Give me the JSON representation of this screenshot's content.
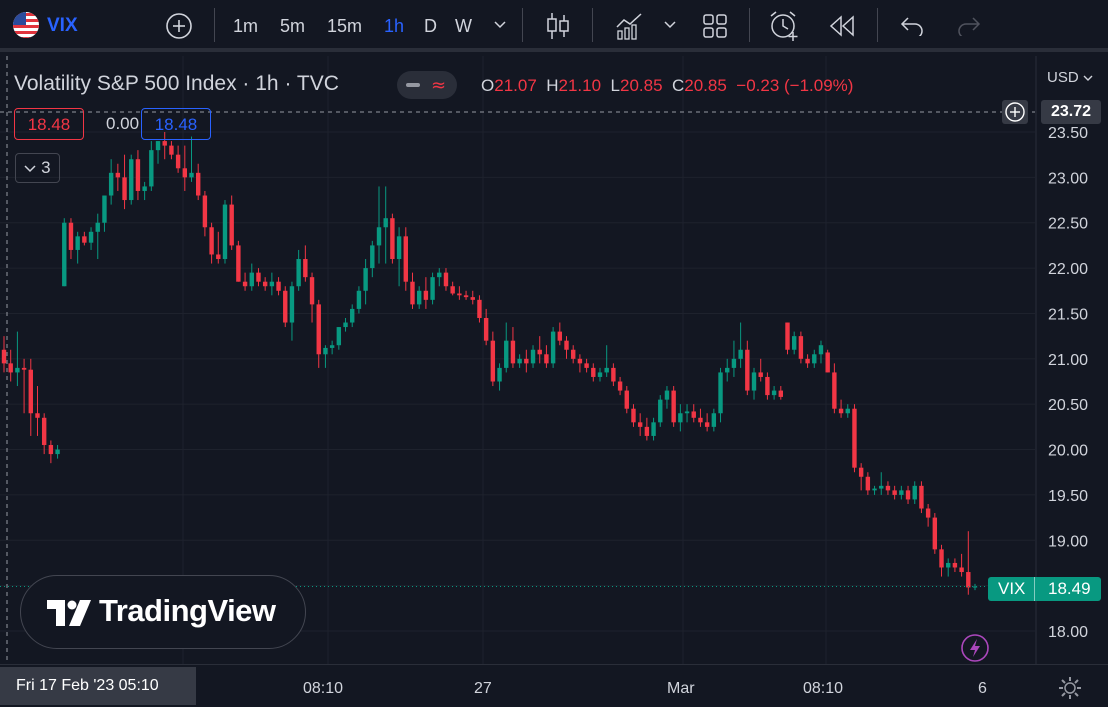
{
  "toolbar": {
    "symbol": "VIX",
    "intervals": [
      "1m",
      "5m",
      "15m",
      "1h",
      "D",
      "W"
    ],
    "active_interval": "1h",
    "icons": [
      "us-flag-icon",
      "add-symbol-icon",
      "chevron-down-icon",
      "candles-icon",
      "indicators-icon",
      "chevron-down-icon",
      "layout-icon",
      "alert-icon",
      "replay-icon",
      "undo-icon",
      "redo-icon"
    ]
  },
  "legend": {
    "title": "Volatility S&P 500 Index · 1h · TVC",
    "ohlc": {
      "o_label": "O",
      "o": "21.07",
      "h_label": "H",
      "h": "21.10",
      "l_label": "L",
      "l": "20.85",
      "c_label": "C",
      "c": "20.85",
      "change": "−0.23 (−1.09%)"
    },
    "bid": "18.48",
    "spread": "0.00",
    "ask": "18.48",
    "indicators_count": "3"
  },
  "price_axis": {
    "currency": "USD",
    "crosshair_price": "23.72",
    "last_symbol": "VIX",
    "last_price": "18.49"
  },
  "time_axis": {
    "crosshair_time": "Fri 17 Feb '23   05:10",
    "ticks": [
      "08:10",
      "27",
      "Mar",
      "08:10",
      "6"
    ]
  },
  "branding": {
    "logo_text": "TradingView"
  },
  "colors": {
    "up": "#089981",
    "down": "#f23645",
    "background": "#131722",
    "grid": "#1e222d",
    "accent": "#2962ff"
  },
  "chart_data": {
    "type": "candlestick",
    "title": "Volatility S&P 500 Index · 1h · TVC",
    "xlabel": "",
    "ylabel": "",
    "ylim": [
      17.6,
      23.8
    ],
    "y_ticks": [
      "18.00",
      "18.50",
      "19.00",
      "19.50",
      "20.00",
      "20.50",
      "21.00",
      "21.50",
      "22.00",
      "22.50",
      "23.00",
      "23.50"
    ],
    "x_tick_labels": [
      "08:10",
      "27",
      "Mar",
      "08:10",
      "6"
    ],
    "grid": true,
    "series": [
      {
        "values": [
          [
            21.1,
            21.25,
            20.85,
            20.95
          ],
          [
            20.95,
            21.1,
            20.75,
            20.85
          ],
          [
            20.85,
            21.3,
            20.7,
            20.9
          ],
          [
            20.9,
            21.0,
            20.4,
            20.88
          ],
          [
            20.88,
            21.0,
            20.15,
            20.4
          ],
          [
            20.4,
            20.7,
            20.15,
            20.35
          ],
          [
            20.35,
            20.4,
            19.95,
            20.05
          ],
          [
            20.05,
            20.1,
            19.85,
            19.95
          ],
          [
            19.95,
            20.05,
            19.9,
            20.0
          ],
          [
            21.8,
            22.55,
            21.8,
            22.5
          ],
          [
            22.5,
            22.55,
            22.1,
            22.2
          ],
          [
            22.2,
            22.4,
            22.05,
            22.35
          ],
          [
            22.35,
            22.4,
            22.25,
            22.28
          ],
          [
            22.28,
            22.45,
            22.2,
            22.4
          ],
          [
            22.4,
            22.6,
            22.1,
            22.5
          ],
          [
            22.5,
            22.8,
            22.4,
            22.8
          ],
          [
            22.8,
            23.2,
            22.7,
            23.05
          ],
          [
            23.05,
            23.15,
            22.85,
            23.0
          ],
          [
            23.0,
            23.25,
            22.65,
            22.75
          ],
          [
            22.75,
            23.25,
            22.7,
            23.2
          ],
          [
            23.2,
            23.3,
            22.75,
            22.85
          ],
          [
            22.85,
            22.95,
            22.75,
            22.9
          ],
          [
            22.9,
            23.4,
            22.85,
            23.3
          ],
          [
            23.3,
            23.4,
            23.15,
            23.4
          ],
          [
            23.4,
            23.5,
            23.2,
            23.35
          ],
          [
            23.35,
            23.4,
            23.2,
            23.25
          ],
          [
            23.25,
            23.35,
            23.05,
            23.1
          ],
          [
            23.1,
            23.35,
            22.85,
            23.0
          ],
          [
            23.0,
            23.45,
            22.95,
            23.05
          ],
          [
            23.05,
            23.15,
            22.75,
            22.8
          ],
          [
            22.8,
            22.85,
            22.35,
            22.45
          ],
          [
            22.45,
            22.5,
            22.05,
            22.15
          ],
          [
            22.15,
            22.4,
            22.05,
            22.1
          ],
          [
            22.1,
            22.75,
            22.05,
            22.7
          ],
          [
            22.7,
            22.8,
            22.2,
            22.25
          ],
          [
            22.25,
            22.3,
            21.85,
            21.85
          ],
          [
            21.85,
            21.95,
            21.75,
            21.8
          ],
          [
            21.8,
            22.05,
            21.75,
            21.95
          ],
          [
            21.95,
            22.0,
            21.8,
            21.85
          ],
          [
            21.85,
            21.9,
            21.75,
            21.8
          ],
          [
            21.8,
            21.95,
            21.7,
            21.85
          ],
          [
            21.85,
            21.9,
            21.7,
            21.75
          ],
          [
            21.75,
            21.8,
            21.35,
            21.4
          ],
          [
            21.4,
            21.85,
            21.2,
            21.8
          ],
          [
            21.8,
            22.2,
            21.75,
            22.1
          ],
          [
            22.1,
            22.25,
            21.85,
            21.9
          ],
          [
            21.9,
            21.95,
            21.4,
            21.6
          ],
          [
            21.6,
            21.65,
            20.9,
            21.05
          ],
          [
            21.05,
            21.15,
            20.9,
            21.12
          ],
          [
            21.12,
            21.2,
            21.05,
            21.15
          ],
          [
            21.15,
            21.35,
            21.1,
            21.35
          ],
          [
            21.35,
            21.45,
            21.3,
            21.4
          ],
          [
            21.4,
            21.6,
            21.35,
            21.55
          ],
          [
            21.55,
            21.8,
            21.5,
            21.75
          ],
          [
            21.75,
            22.1,
            21.6,
            22.0
          ],
          [
            22.0,
            22.3,
            21.9,
            22.25
          ],
          [
            22.25,
            22.9,
            22.05,
            22.45
          ],
          [
            22.45,
            22.9,
            22.05,
            22.55
          ],
          [
            22.55,
            22.6,
            22.05,
            22.1
          ],
          [
            22.1,
            22.45,
            21.8,
            22.35
          ],
          [
            22.35,
            22.45,
            21.75,
            21.85
          ],
          [
            21.85,
            21.95,
            21.55,
            21.6
          ],
          [
            21.6,
            21.8,
            21.55,
            21.75
          ],
          [
            21.75,
            21.9,
            21.55,
            21.65
          ],
          [
            21.65,
            21.95,
            21.6,
            21.9
          ],
          [
            21.9,
            22.0,
            21.8,
            21.95
          ],
          [
            21.95,
            22.0,
            21.75,
            21.8
          ],
          [
            21.8,
            21.85,
            21.7,
            21.72
          ],
          [
            21.72,
            21.8,
            21.65,
            21.7
          ],
          [
            21.7,
            21.75,
            21.65,
            21.68
          ],
          [
            21.68,
            21.75,
            21.6,
            21.65
          ],
          [
            21.65,
            21.7,
            21.4,
            21.45
          ],
          [
            21.45,
            21.55,
            21.15,
            21.2
          ],
          [
            21.2,
            21.3,
            20.7,
            20.75
          ],
          [
            20.75,
            20.95,
            20.65,
            20.9
          ],
          [
            20.9,
            21.4,
            20.85,
            21.2
          ],
          [
            21.2,
            21.35,
            20.9,
            20.95
          ],
          [
            20.95,
            21.05,
            20.9,
            21.0
          ],
          [
            21.0,
            21.1,
            20.85,
            20.95
          ],
          [
            20.95,
            21.15,
            20.9,
            21.1
          ],
          [
            21.1,
            21.25,
            20.95,
            21.05
          ],
          [
            21.05,
            21.15,
            20.9,
            20.95
          ],
          [
            20.95,
            21.35,
            20.9,
            21.3
          ],
          [
            21.3,
            21.4,
            21.15,
            21.2
          ],
          [
            21.2,
            21.25,
            21.0,
            21.1
          ],
          [
            21.1,
            21.15,
            20.95,
            21.0
          ],
          [
            21.0,
            21.05,
            20.85,
            20.95
          ],
          [
            20.95,
            21.0,
            20.85,
            20.9
          ],
          [
            20.9,
            20.95,
            20.75,
            20.8
          ],
          [
            20.8,
            20.9,
            20.75,
            20.85
          ],
          [
            20.85,
            21.15,
            20.8,
            20.9
          ],
          [
            20.9,
            20.95,
            20.7,
            20.75
          ],
          [
            20.75,
            20.8,
            20.6,
            20.65
          ],
          [
            20.65,
            20.7,
            20.4,
            20.45
          ],
          [
            20.45,
            20.5,
            20.25,
            20.3
          ],
          [
            20.3,
            20.4,
            20.15,
            20.25
          ],
          [
            20.25,
            20.35,
            20.1,
            20.15
          ],
          [
            20.15,
            20.35,
            20.1,
            20.3
          ],
          [
            20.3,
            20.6,
            20.25,
            20.55
          ],
          [
            20.55,
            20.7,
            20.45,
            20.65
          ],
          [
            20.65,
            20.7,
            20.25,
            20.3
          ],
          [
            20.3,
            20.5,
            20.2,
            20.4
          ],
          [
            20.4,
            20.5,
            20.3,
            20.42
          ],
          [
            20.42,
            20.5,
            20.3,
            20.35
          ],
          [
            20.35,
            20.45,
            20.25,
            20.3
          ],
          [
            20.3,
            20.4,
            20.2,
            20.25
          ],
          [
            20.25,
            20.45,
            20.2,
            20.4
          ],
          [
            20.4,
            20.9,
            20.3,
            20.85
          ],
          [
            20.85,
            21.0,
            20.75,
            20.9
          ],
          [
            20.9,
            21.2,
            20.8,
            21.0
          ],
          [
            21.0,
            21.4,
            20.9,
            21.1
          ],
          [
            21.1,
            21.2,
            20.6,
            20.65
          ],
          [
            20.65,
            20.9,
            20.55,
            20.85
          ],
          [
            20.85,
            21.0,
            20.75,
            20.8
          ],
          [
            20.8,
            20.85,
            20.55,
            20.6
          ],
          [
            20.6,
            20.7,
            20.55,
            20.65
          ],
          [
            20.65,
            20.7,
            20.55,
            20.58
          ],
          [
            21.4,
            21.4,
            21.05,
            21.1
          ],
          [
            21.1,
            21.3,
            21.05,
            21.25
          ],
          [
            21.25,
            21.3,
            20.95,
            21.0
          ],
          [
            21.0,
            21.05,
            20.9,
            20.95
          ],
          [
            20.95,
            21.1,
            20.9,
            21.05
          ],
          [
            21.05,
            21.2,
            20.95,
            21.15
          ],
          [
            21.07,
            21.1,
            20.85,
            20.85
          ],
          [
            20.85,
            20.95,
            20.4,
            20.45
          ],
          [
            20.45,
            20.55,
            20.35,
            20.4
          ],
          [
            20.4,
            20.5,
            20.35,
            20.45
          ],
          [
            20.45,
            20.5,
            19.75,
            19.8
          ],
          [
            19.8,
            19.85,
            19.55,
            19.7
          ],
          [
            19.7,
            19.75,
            19.5,
            19.55
          ],
          [
            19.55,
            19.6,
            19.5,
            19.57
          ],
          [
            19.57,
            19.75,
            19.5,
            19.6
          ],
          [
            19.6,
            19.65,
            19.5,
            19.55
          ],
          [
            19.55,
            19.6,
            19.45,
            19.5
          ],
          [
            19.5,
            19.6,
            19.45,
            19.55
          ],
          [
            19.55,
            19.6,
            19.4,
            19.45
          ],
          [
            19.45,
            19.65,
            19.4,
            19.6
          ],
          [
            19.6,
            19.65,
            19.3,
            19.35
          ],
          [
            19.35,
            19.4,
            19.15,
            19.25
          ],
          [
            19.25,
            19.3,
            18.85,
            18.9
          ],
          [
            18.9,
            18.95,
            18.6,
            18.7
          ],
          [
            18.7,
            18.8,
            18.6,
            18.75
          ],
          [
            18.75,
            18.8,
            18.65,
            18.7
          ],
          [
            18.7,
            18.85,
            18.6,
            18.65
          ],
          [
            18.65,
            19.1,
            18.4,
            18.48
          ],
          [
            18.48,
            18.52,
            18.45,
            18.49
          ]
        ]
      }
    ]
  }
}
